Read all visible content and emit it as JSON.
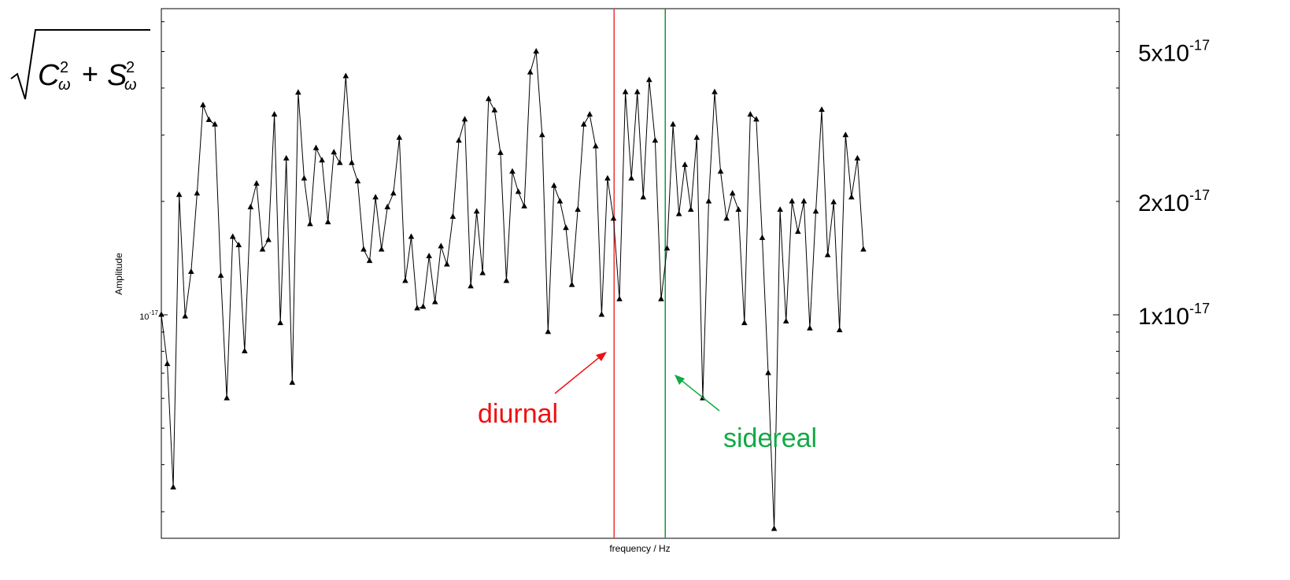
{
  "chart_data": {
    "type": "line",
    "title": "",
    "xlabel": "frequency / Hz",
    "ylabel": "Amplitude",
    "y_scale": "log",
    "ylim": [
      2.55e-18,
      6.5e-17
    ],
    "ytick_labels": [
      {
        "value": 1e-17,
        "base": "10",
        "exp": "-17"
      }
    ],
    "right_annotations": [
      {
        "value": 5e-17,
        "base": "5x10",
        "exp": "-17"
      },
      {
        "value": 2e-17,
        "base": "2x10",
        "exp": "-17"
      },
      {
        "value": 1e-17,
        "base": "1x10",
        "exp": "-17"
      }
    ],
    "formula": {
      "c": "C",
      "s": "S",
      "sub": "ω",
      "sup": "2",
      "op": "+"
    },
    "grid": false,
    "marker": "triangle",
    "line_color": "#000000",
    "x_range": [
      0,
      161
    ],
    "series": [
      {
        "values": [
          1e-17,
          7.4e-18,
          3.48e-18,
          2.08e-17,
          9.9e-18,
          1.3e-17,
          2.1e-17,
          3.6e-17,
          3.29e-17,
          3.2e-17,
          1.27e-17,
          6e-18,
          1.61e-17,
          1.53e-17,
          8e-18,
          1.93e-17,
          2.23e-17,
          1.49e-17,
          1.58e-17,
          3.4e-17,
          9.5e-18,
          2.6e-17,
          6.6e-18,
          3.89e-17,
          2.3e-17,
          1.74e-17,
          2.77e-17,
          2.57e-17,
          1.76e-17,
          2.7e-17,
          2.53e-17,
          4.3e-17,
          2.53e-17,
          2.26e-17,
          1.49e-17,
          1.39e-17,
          2.05e-17,
          1.49e-17,
          1.93e-17,
          2.1e-17,
          2.95e-17,
          1.23e-17,
          1.61e-17,
          1.04e-17,
          1.05e-17,
          1.43e-17,
          1.08e-17,
          1.52e-17,
          1.36e-17,
          1.82e-17,
          2.9e-17,
          3.3e-17,
          1.19e-17,
          1.88e-17,
          1.29e-17,
          3.74e-17,
          3.49e-17,
          2.69e-17,
          1.23e-17,
          2.4e-17,
          2.12e-17,
          1.94e-17,
          4.4e-17,
          5e-17,
          3e-17,
          9e-18,
          2.2e-17,
          2e-17,
          1.7e-17,
          1.2e-17,
          1.9e-17,
          3.2e-17,
          3.4e-17,
          2.8e-17,
          1e-17,
          2.3e-17,
          1.8e-17,
          1.1e-17,
          3.9e-17,
          2.3e-17,
          3.9e-17,
          2.05e-17,
          4.2e-17,
          2.9e-17,
          1.1e-17,
          1.5e-17,
          3.2e-17,
          1.85e-17,
          2.5e-17,
          1.9e-17,
          2.95e-17,
          6e-18,
          2e-17,
          3.9e-17,
          2.4e-17,
          1.8e-17,
          2.1e-17,
          1.9e-17,
          9.5e-18,
          3.4e-17,
          3.3e-17,
          1.6e-17,
          7e-18,
          2.7e-18,
          1.9e-17,
          9.6e-18,
          2e-17,
          1.66e-17,
          2e-17,
          9.2e-18,
          1.88e-17,
          3.5e-17,
          1.44e-17,
          1.99e-17,
          9.1e-18,
          3e-17,
          2.05e-17,
          2.6e-17,
          1.49e-17
        ]
      }
    ],
    "vlines": [
      {
        "x": 76.1,
        "color": "#ee3333",
        "label": "diurnal",
        "label_color": "#ee1111"
      },
      {
        "x": 84.7,
        "color": "#119933",
        "label": "sidereal",
        "label_color": "#11aa44"
      }
    ]
  }
}
